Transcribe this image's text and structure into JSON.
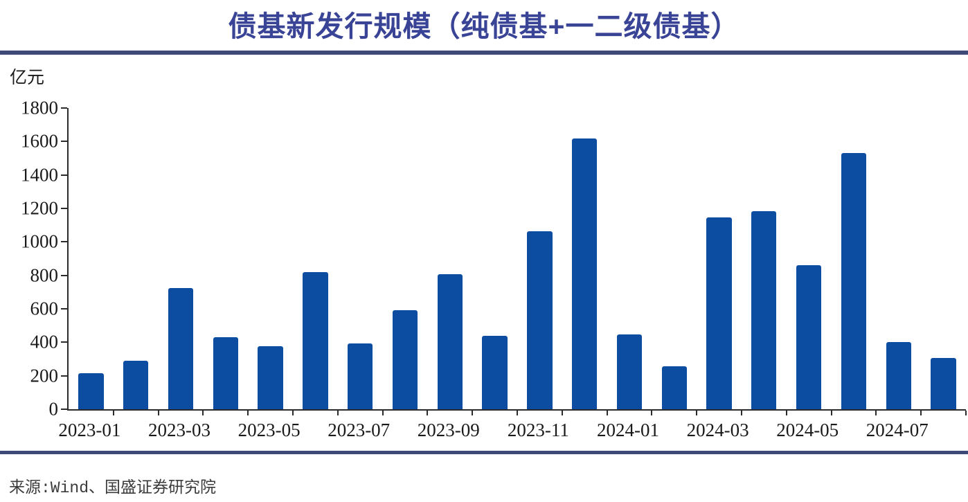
{
  "title": "债基新发行规模（纯债基+一二级债基）",
  "unit_label": "亿元",
  "source": "来源:Wind、国盛证券研究院",
  "colors": {
    "bar": "#0D4DA1",
    "title": "#3A4496",
    "rule": "#3D4977",
    "axis": "#2b2b2b",
    "text": "#1a1a1a"
  },
  "chart_data": {
    "type": "bar",
    "title": "债基新发行规模（纯债基+一二级债基）",
    "ylabel": "亿元",
    "xlabel": "",
    "ylim": [
      0,
      1800
    ],
    "ytick_step": 200,
    "yticks": [
      0,
      200,
      400,
      600,
      800,
      1000,
      1200,
      1400,
      1600,
      1800
    ],
    "categories": [
      "2023-01",
      "2023-02",
      "2023-03",
      "2023-04",
      "2023-05",
      "2023-06",
      "2023-07",
      "2023-08",
      "2023-09",
      "2023-10",
      "2023-11",
      "2023-12",
      "2024-01",
      "2024-02",
      "2024-03",
      "2024-04",
      "2024-05",
      "2024-06",
      "2024-07",
      "2024-08"
    ],
    "values": [
      215,
      290,
      725,
      430,
      375,
      820,
      395,
      590,
      805,
      440,
      1065,
      1620,
      445,
      255,
      1145,
      1185,
      860,
      1530,
      400,
      305
    ],
    "xtick_labels_shown": [
      "2023-01",
      "2023-03",
      "2023-05",
      "2023-07",
      "2023-09",
      "2023-11",
      "2024-01",
      "2024-03",
      "2024-05",
      "2024-07"
    ],
    "xtick_label_every": 2,
    "grid": false,
    "legend": false,
    "bar_color": "#0D4DA1",
    "series_name": "债基新发行规模"
  }
}
